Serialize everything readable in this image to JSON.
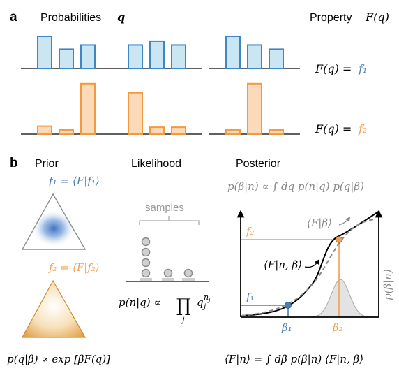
{
  "panel_a": {
    "letter": "a",
    "probabilities_label": "Probabilities",
    "q_symbol": "q",
    "property_label": "Property",
    "property_symbol": "F(q)",
    "row1_eq_left": "F(q) =",
    "row1_eq_right": "f₁",
    "row2_eq_left": "F(q) =",
    "row2_eq_right": "f₂",
    "row1_bars": [
      [
        1.0,
        0.6,
        0.73
      ],
      [
        0.73,
        0.85,
        0.73
      ],
      [
        1.0,
        0.73,
        0.6
      ]
    ],
    "row2_bars": [
      [
        0.15,
        0.08,
        0.95
      ],
      [
        0.78,
        0.13,
        0.13
      ],
      [
        0.08,
        0.95,
        0.08
      ]
    ]
  },
  "panel_b": {
    "letter": "b",
    "prior_title": "Prior",
    "likelihood_title": "Likelihood",
    "posterior_title": "Posterior",
    "f1_def_left": "f₁ =",
    "f1_def_right": "⟨F|f₁⟩",
    "f2_def_left": "f₂ =",
    "f2_def_right": "⟨F|f₂⟩",
    "prior_formula": "p(q|β) ∝ exp [βF(q)]",
    "samples_label": "samples",
    "sample_counts": [
      4,
      1,
      1
    ],
    "likelihood_formula_left": "p(n|q) ∝",
    "likelihood_product": "∏",
    "likelihood_index": "j",
    "likelihood_q": "q",
    "likelihood_exp": "n",
    "likelihood_exp_sub": "j",
    "likelihood_q_sub": "j",
    "posterior_formula": "p(β|n) ∝ ∫ dq p(n|q) p(q|β)",
    "F_beta_label": "⟨F|β⟩",
    "F_n_beta_label": "⟨F|n, β⟩",
    "f1_label": "f₁",
    "f2_label": "f₂",
    "beta1_label": "β₁",
    "beta2_label": "β₂",
    "p_beta_n_label": "p(β|n)",
    "bottom_formula": "⟨F|n⟩ = ∫ dβ p(β|n) ⟨F|n, β⟩"
  },
  "colors": {
    "blue": "#4a7fb5",
    "blue_fill": "#c9e6f2",
    "blue_stroke": "#3f87c4",
    "orange": "#f0a050",
    "orange_fill": "#fbd9b9",
    "orange_stroke": "#f29a3e",
    "grey": "#9a9a9a"
  }
}
